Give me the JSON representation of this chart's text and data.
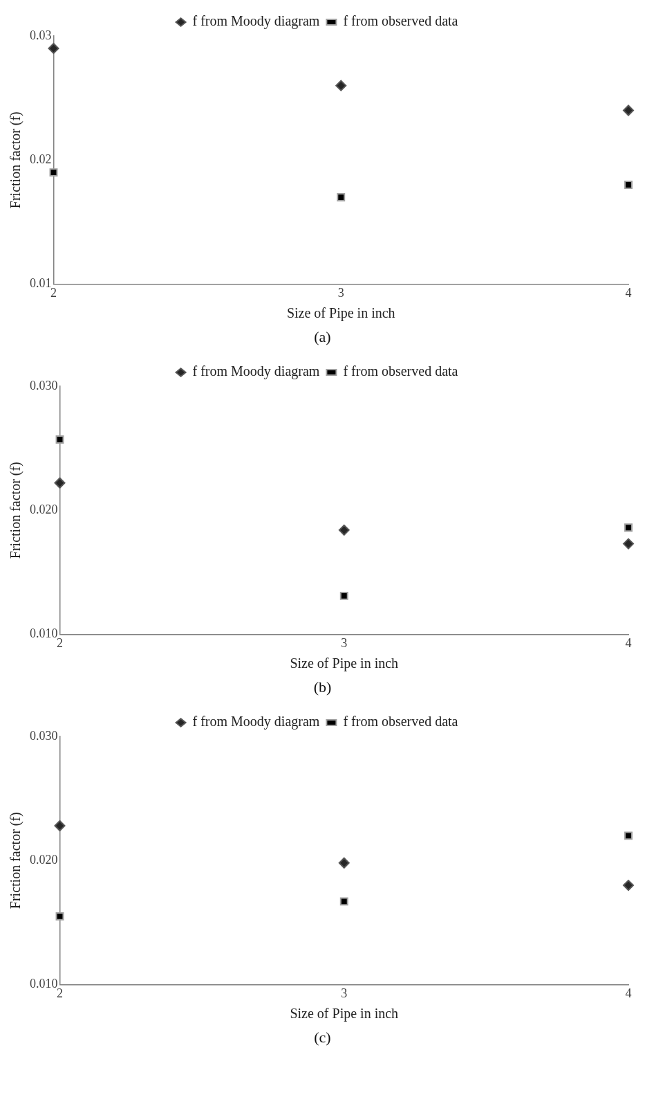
{
  "chart_data": [
    {
      "type": "scatter",
      "x": [
        2,
        3,
        4
      ],
      "xlim": [
        2,
        4
      ],
      "xticks": [
        2,
        3,
        4
      ],
      "ylim": [
        0.01,
        0.03
      ],
      "yticks": [
        0.01,
        0.02,
        0.03
      ],
      "xlabel": "Size of Pipe in inch",
      "ylabel": "Friction factor (f)",
      "legend": "top",
      "grid": false,
      "annotations": [
        "(a)"
      ],
      "series": [
        {
          "name": "f from Moody diagram",
          "color": "#262626",
          "marker": "diamond",
          "values": [
            0.029,
            0.026,
            0.024
          ]
        },
        {
          "name": "f from observed data",
          "color": "#000000",
          "marker": "square",
          "values": [
            0.019,
            0.017,
            0.018
          ]
        }
      ]
    },
    {
      "type": "scatter",
      "x": [
        2,
        3,
        4
      ],
      "xlim": [
        2,
        4
      ],
      "xticks": [
        2,
        3,
        4
      ],
      "ylim": [
        0.01,
        0.03
      ],
      "yticks": [
        {
          "value": 0.01,
          "label": "0.010"
        },
        {
          "value": 0.02,
          "label": "0.020"
        },
        {
          "value": 0.03,
          "label": "0.030"
        }
      ],
      "xlabel": "Size of Pipe in inch",
      "ylabel": "Friction factor (f)",
      "legend": "top",
      "grid": false,
      "annotations": [
        "(b)"
      ],
      "series": [
        {
          "name": "f from Moody diagram",
          "color": "#262626",
          "marker": "diamond",
          "values": [
            0.0222,
            0.0184,
            0.0173
          ]
        },
        {
          "name": "f from observed data",
          "color": "#000000",
          "marker": "square",
          "values": [
            0.0257,
            0.0131,
            0.0186
          ]
        }
      ]
    },
    {
      "type": "scatter",
      "x": [
        2,
        3,
        4
      ],
      "xlim": [
        2,
        4
      ],
      "xticks": [
        2,
        3,
        4
      ],
      "ylim": [
        0.01,
        0.03
      ],
      "yticks": [
        {
          "value": 0.01,
          "label": "0.010"
        },
        {
          "value": 0.02,
          "label": "0.020"
        },
        {
          "value": 0.03,
          "label": "0.030"
        }
      ],
      "xlabel": "Size of Pipe in inch",
      "ylabel": "Friction factor (f)",
      "legend": "top",
      "grid": false,
      "annotations": [
        "(c)"
      ],
      "series": [
        {
          "name": "f from Moody diagram",
          "color": "#262626",
          "marker": "diamond",
          "values": [
            0.0228,
            0.0198,
            0.018
          ]
        },
        {
          "name": "f from observed data",
          "color": "#000000",
          "marker": "square",
          "values": [
            0.0155,
            0.0167,
            0.022
          ]
        }
      ]
    }
  ]
}
